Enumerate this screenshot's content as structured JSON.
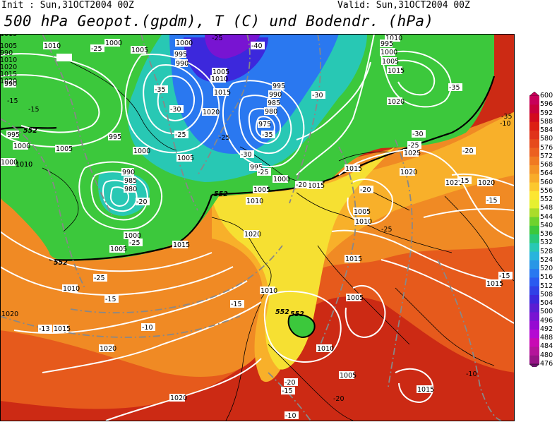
{
  "header": {
    "init": "Init : Sun,31OCT2004 00Z",
    "valid": "Valid: Sun,31OCT2004 00Z",
    "title": "500 hPa Geopot.(gpdm), T (C) und Bodendr. (hPa)"
  },
  "legend": {
    "levels": [
      "600",
      "596",
      "592",
      "588",
      "584",
      "580",
      "576",
      "572",
      "568",
      "564",
      "560",
      "556",
      "552",
      "548",
      "544",
      "540",
      "536",
      "532",
      "528",
      "524",
      "520",
      "516",
      "512",
      "508",
      "504",
      "500",
      "496",
      "492",
      "488",
      "484",
      "480",
      "476"
    ],
    "colors": [
      "#c8005a",
      "#c8003c",
      "#d20a1e",
      "#dc1e14",
      "#e0321a",
      "#e64a1c",
      "#ec6020",
      "#f07a22",
      "#f49426",
      "#f8ac2a",
      "#fcc82e",
      "#fce632",
      "#e6f030",
      "#aadc2a",
      "#6ed22c",
      "#3cc83c",
      "#28c878",
      "#28c8b4",
      "#28b4dc",
      "#2896e6",
      "#2878f0",
      "#2a5af0",
      "#3040e6",
      "#3c28dc",
      "#5a1ed2",
      "#7814d2",
      "#960ad2",
      "#b40ad2",
      "#c80ab4",
      "#b4149a",
      "#961486",
      "#6e146e"
    ]
  },
  "map_labels": {
    "pressure": [
      "1010",
      "1000",
      "1005",
      "1000",
      "995",
      "990",
      "1005",
      "1010",
      "1015",
      "1020",
      "995",
      "990",
      "985",
      "980",
      "975",
      "995",
      "990",
      "1000",
      "1005",
      "1000",
      "995",
      "990",
      "985",
      "980",
      "1000",
      "1005",
      "1010",
      "1015",
      "1020",
      "1000",
      "1005",
      "1010",
      "1015",
      "1020",
      "1010",
      "1015",
      "1020",
      "1005",
      "1010",
      "1015",
      "1005",
      "1010",
      "1015",
      "1020",
      "1020",
      "1015",
      "1015",
      "1010",
      "1005",
      "1010",
      "1005",
      "1015",
      "1020",
      "1020",
      "995",
      "1000",
      "1005",
      "1010",
      "1025",
      "1020",
      "1015",
      "1010",
      "1020",
      "1015",
      "1020",
      "995",
      "990",
      "1000",
      "1005"
    ],
    "temperature": [
      "-40",
      "-35",
      "-30",
      "-25",
      "-35",
      "-30",
      "-25",
      "-30",
      "-35",
      "-30",
      "-25",
      "-20",
      "-25",
      "-20",
      "-15",
      "-20",
      "-25",
      "-25",
      "-20",
      "-15",
      "-10",
      "-15",
      "-20",
      "-15",
      "-15",
      "-10",
      "-15",
      "-13",
      "-35",
      "-25",
      "-15",
      "-10",
      "-10",
      "-15",
      "-20",
      "-25",
      "-25"
    ],
    "geopotential": [
      "552",
      "552",
      "552",
      "552",
      "552"
    ]
  }
}
